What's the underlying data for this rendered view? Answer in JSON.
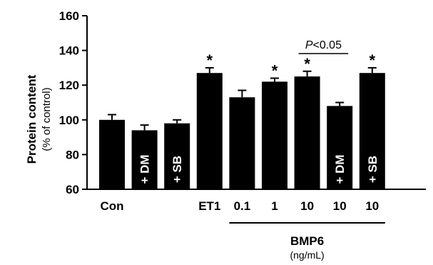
{
  "chart_data": {
    "type": "bar",
    "ylabel": "Protein content",
    "ylabel_sub": "(% of control)",
    "ylim": [
      60,
      160
    ],
    "yticks": [
      60,
      80,
      100,
      120,
      140,
      160
    ],
    "bars": [
      {
        "label": "Con",
        "in_bar": "",
        "value": 100,
        "error": 3,
        "star": false
      },
      {
        "label": "",
        "in_bar": "+ DM",
        "value": 94,
        "error": 3,
        "star": false
      },
      {
        "label": "",
        "in_bar": "+ SB",
        "value": 98,
        "error": 2,
        "star": false
      },
      {
        "label": "ET1",
        "in_bar": "",
        "value": 127,
        "error": 3,
        "star": true
      },
      {
        "label": "0.1",
        "in_bar": "",
        "value": 113,
        "error": 4,
        "star": false
      },
      {
        "label": "1",
        "in_bar": "",
        "value": 122,
        "error": 2,
        "star": true
      },
      {
        "label": "10",
        "in_bar": "",
        "value": 125,
        "error": 3,
        "star": true
      },
      {
        "label": "10",
        "in_bar": "+ DM",
        "value": 108,
        "error": 2,
        "star": false
      },
      {
        "label": "10",
        "in_bar": "+ SB",
        "value": 127,
        "error": 3,
        "star": true
      }
    ],
    "star_symbol": "*",
    "significance": {
      "from_bar": 6,
      "to_bar": 7,
      "p_italic": "P",
      "p_rest": "<0.05"
    },
    "group": {
      "label": "BMP6",
      "unit": "(ng/mL)",
      "from_bar": 4,
      "to_bar": 8
    }
  }
}
